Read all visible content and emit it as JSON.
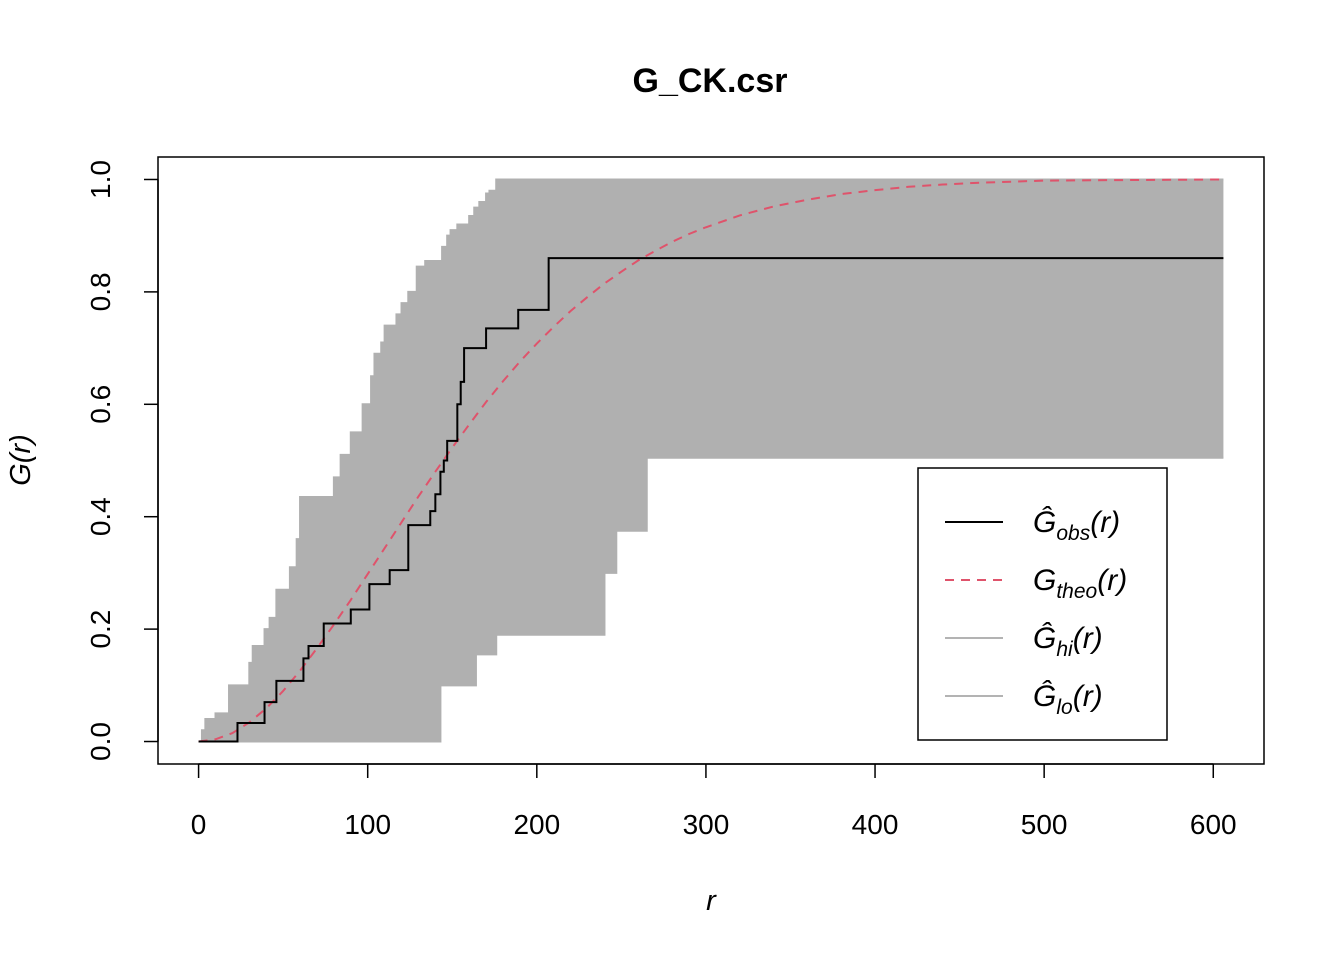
{
  "chart_data": {
    "type": "line",
    "title": "G_CK.csr",
    "xlabel": "r",
    "ylabel": "G(r)",
    "xlim": [
      -24,
      630
    ],
    "ylim": [
      -0.04,
      1.04
    ],
    "x_ticks": [
      "0",
      "100",
      "200",
      "300",
      "400",
      "500",
      "600"
    ],
    "y_ticks": [
      "0.0",
      "0.2",
      "0.4",
      "0.6",
      "0.8",
      "1.0"
    ],
    "grid": false,
    "legend_position": "bottom-right",
    "legend": [
      {
        "key": "obs",
        "symbol": "Ĝ",
        "sub": "obs",
        "arg": "(r)",
        "color": "#000000",
        "dash": "solid"
      },
      {
        "key": "theo",
        "symbol": "G",
        "sub": "theo",
        "arg": "(r)",
        "color": "#DF536B",
        "dash": "dashed"
      },
      {
        "key": "hi",
        "symbol": "Ĝ",
        "sub": "hi",
        "arg": "(r)",
        "color": "#B3B3B3",
        "dash": "solid"
      },
      {
        "key": "lo",
        "symbol": "Ĝ",
        "sub": "lo",
        "arg": "(r)",
        "color": "#B3B3B3",
        "dash": "solid"
      }
    ],
    "colors": {
      "envelope": "#B0B0B0",
      "obs": "#000000",
      "theo": "#DF536B"
    },
    "series": [
      {
        "name": "obs",
        "x": [
          0,
          23,
          23,
          25,
          25,
          39,
          39,
          42,
          42,
          46,
          46,
          62,
          62,
          65,
          65,
          69,
          69,
          74,
          74,
          87,
          87,
          90,
          90,
          101,
          101,
          103,
          103,
          113,
          113,
          124,
          124,
          137,
          137,
          140,
          140,
          143,
          143,
          145,
          145,
          147,
          147,
          153,
          153,
          155,
          155,
          157,
          157,
          170,
          170,
          189,
          189,
          207,
          207,
          606
        ],
        "y": [
          0,
          0,
          0.033,
          0.033,
          0.033,
          0.033,
          0.07,
          0.07,
          0.07,
          0.07,
          0.108,
          0.108,
          0.148,
          0.148,
          0.17,
          0.17,
          0.17,
          0.17,
          0.21,
          0.21,
          0.21,
          0.21,
          0.235,
          0.235,
          0.28,
          0.28,
          0.28,
          0.28,
          0.305,
          0.305,
          0.385,
          0.385,
          0.41,
          0.41,
          0.44,
          0.44,
          0.48,
          0.48,
          0.5,
          0.5,
          0.535,
          0.535,
          0.6,
          0.6,
          0.64,
          0.64,
          0.7,
          0.7,
          0.735,
          0.735,
          0.768,
          0.768,
          0.86,
          0.86
        ]
      },
      {
        "name": "theo",
        "x": [
          0,
          10,
          20,
          30,
          40,
          50,
          60,
          70,
          80,
          90,
          100,
          110,
          120,
          130,
          140,
          150,
          160,
          170,
          180,
          190,
          200,
          210,
          220,
          230,
          240,
          250,
          260,
          270,
          280,
          290,
          300,
          320,
          340,
          360,
          380,
          400,
          420,
          440,
          460,
          500,
          550,
          606
        ],
        "y": [
          0,
          0.004,
          0.015,
          0.034,
          0.059,
          0.09,
          0.126,
          0.166,
          0.208,
          0.252,
          0.298,
          0.344,
          0.39,
          0.436,
          0.48,
          0.523,
          0.564,
          0.604,
          0.641,
          0.676,
          0.708,
          0.738,
          0.766,
          0.791,
          0.815,
          0.836,
          0.856,
          0.873,
          0.889,
          0.903,
          0.915,
          0.936,
          0.952,
          0.964,
          0.974,
          0.981,
          0.987,
          0.991,
          0.994,
          0.998,
          0.999,
          1.0
        ]
      },
      {
        "name": "hi",
        "x": [
          0,
          2,
          2,
          4,
          4,
          10,
          10,
          18,
          18,
          30,
          30,
          32,
          32,
          39,
          39,
          42,
          42,
          46,
          46,
          54,
          54,
          58,
          58,
          60,
          60,
          80,
          80,
          84,
          84,
          90,
          90,
          97,
          97,
          102,
          102,
          104,
          104,
          108,
          108,
          110,
          110,
          117,
          117,
          120,
          120,
          124,
          124,
          129,
          129,
          134,
          134,
          144,
          144,
          147,
          147,
          149,
          149,
          153,
          153,
          160,
          160,
          163,
          163,
          166,
          166,
          170,
          170,
          172,
          172,
          176,
          176,
          180,
          180,
          184,
          184,
          186,
          186,
          189,
          189,
          193,
          193,
          196,
          196,
          198,
          198,
          606
        ],
        "y": [
          0,
          0,
          0.02,
          0.02,
          0.04,
          0.04,
          0.05,
          0.05,
          0.1,
          0.1,
          0.14,
          0.14,
          0.17,
          0.17,
          0.2,
          0.2,
          0.22,
          0.22,
          0.27,
          0.27,
          0.31,
          0.31,
          0.36,
          0.36,
          0.435,
          0.435,
          0.47,
          0.47,
          0.51,
          0.51,
          0.55,
          0.55,
          0.6,
          0.6,
          0.65,
          0.65,
          0.69,
          0.69,
          0.71,
          0.71,
          0.74,
          0.74,
          0.76,
          0.76,
          0.78,
          0.78,
          0.8,
          0.8,
          0.845,
          0.845,
          0.855,
          0.855,
          0.88,
          0.88,
          0.9,
          0.9,
          0.91,
          0.91,
          0.92,
          0.92,
          0.935,
          0.935,
          0.95,
          0.95,
          0.96,
          0.96,
          0.975,
          0.975,
          0.98,
          0.98,
          1.0,
          1.0,
          1.0,
          1.0,
          1.0,
          1.0,
          1.0,
          1.0,
          1.0,
          1.0,
          1.0,
          1.0,
          1.0,
          1.0,
          1.0,
          1.0
        ]
      },
      {
        "name": "lo",
        "x": [
          0,
          143,
          143,
          146,
          146,
          164,
          164,
          176,
          176,
          240,
          240,
          247,
          247,
          265,
          265,
          606
        ],
        "y": [
          0,
          0,
          0.1,
          0.1,
          0.1,
          0.1,
          0.155,
          0.155,
          0.19,
          0.19,
          0.3,
          0.3,
          0.375,
          0.375,
          0.505,
          0.505
        ]
      }
    ]
  }
}
